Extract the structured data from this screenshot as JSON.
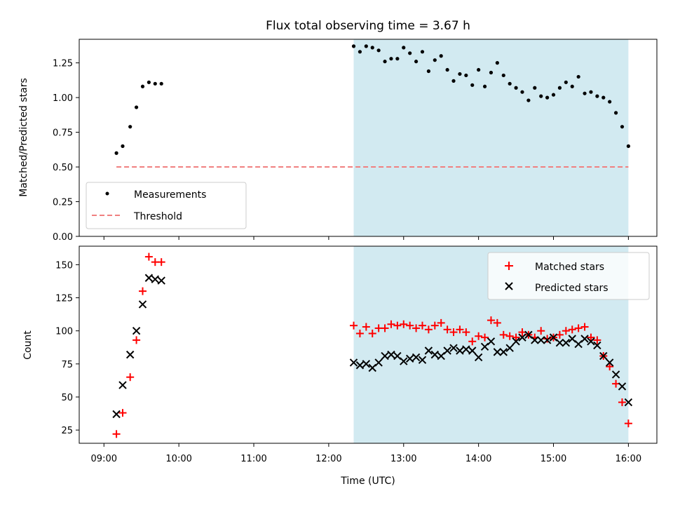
{
  "chart_data": {
    "title": "Flux total observing time = 3.67 h",
    "xlabel": "Time (UTC)",
    "x_type": "time",
    "xlim": [
      "09:00",
      "16:00"
    ],
    "x_ticks": [
      "09:00",
      "10:00",
      "11:00",
      "12:00",
      "13:00",
      "14:00",
      "15:00",
      "16:00"
    ],
    "shaded_region": {
      "start": "12:20",
      "end": "16:00",
      "color": "#add8e6"
    },
    "panels": [
      {
        "type": "scatter",
        "ylabel": "Matched/Predicted stars",
        "ylim": [
          0,
          1.42
        ],
        "y_ticks": [
          "0.00",
          "0.25",
          "0.50",
          "0.75",
          "1.00",
          "1.25"
        ],
        "legend": {
          "position": "lower-left",
          "entries": [
            "Measurements",
            "Threshold"
          ]
        },
        "series": [
          {
            "name": "Measurements",
            "marker": "dot",
            "color": "#000000",
            "points": [
              [
                "09:10",
                0.6
              ],
              [
                "09:15",
                0.65
              ],
              [
                "09:21",
                0.79
              ],
              [
                "09:26",
                0.93
              ],
              [
                "09:31",
                1.08
              ],
              [
                "09:36",
                1.11
              ],
              [
                "09:41",
                1.1
              ],
              [
                "09:46",
                1.1
              ],
              [
                "12:20",
                1.37
              ],
              [
                "12:25",
                1.33
              ],
              [
                "12:30",
                1.37
              ],
              [
                "12:35",
                1.36
              ],
              [
                "12:40",
                1.34
              ],
              [
                "12:45",
                1.26
              ],
              [
                "12:50",
                1.28
              ],
              [
                "12:55",
                1.28
              ],
              [
                "13:00",
                1.36
              ],
              [
                "13:05",
                1.32
              ],
              [
                "13:10",
                1.26
              ],
              [
                "13:15",
                1.33
              ],
              [
                "13:20",
                1.19
              ],
              [
                "13:25",
                1.27
              ],
              [
                "13:30",
                1.3
              ],
              [
                "13:35",
                1.2
              ],
              [
                "13:40",
                1.12
              ],
              [
                "13:45",
                1.17
              ],
              [
                "13:50",
                1.16
              ],
              [
                "13:55",
                1.09
              ],
              [
                "14:00",
                1.2
              ],
              [
                "14:05",
                1.08
              ],
              [
                "14:10",
                1.18
              ],
              [
                "14:15",
                1.25
              ],
              [
                "14:20",
                1.16
              ],
              [
                "14:25",
                1.1
              ],
              [
                "14:30",
                1.07
              ],
              [
                "14:35",
                1.04
              ],
              [
                "14:40",
                0.98
              ],
              [
                "14:45",
                1.07
              ],
              [
                "14:50",
                1.01
              ],
              [
                "14:55",
                1.0
              ],
              [
                "15:00",
                1.02
              ],
              [
                "15:05",
                1.07
              ],
              [
                "15:10",
                1.11
              ],
              [
                "15:15",
                1.08
              ],
              [
                "15:20",
                1.15
              ],
              [
                "15:25",
                1.03
              ],
              [
                "15:30",
                1.04
              ],
              [
                "15:35",
                1.01
              ],
              [
                "15:40",
                1.0
              ],
              [
                "15:45",
                0.97
              ],
              [
                "15:50",
                0.89
              ],
              [
                "15:55",
                0.79
              ],
              [
                "16:00",
                0.65
              ]
            ]
          },
          {
            "name": "Threshold",
            "type": "dashed-line",
            "color": "#f08080",
            "points": [
              [
                "09:10",
                0.5
              ],
              [
                "16:00",
                0.5
              ]
            ]
          }
        ]
      },
      {
        "type": "scatter",
        "ylabel": "Count",
        "ylim": [
          15,
          164
        ],
        "y_ticks": [
          "25",
          "50",
          "75",
          "100",
          "125",
          "150"
        ],
        "legend": {
          "position": "upper-right",
          "entries": [
            "Matched stars",
            "Predicted stars"
          ]
        },
        "series": [
          {
            "name": "Matched stars",
            "marker": "plus",
            "color": "#ff0000",
            "points": [
              [
                "09:10",
                22
              ],
              [
                "09:15",
                38
              ],
              [
                "09:21",
                65
              ],
              [
                "09:26",
                93
              ],
              [
                "09:31",
                130
              ],
              [
                "09:36",
                156
              ],
              [
                "09:41",
                152
              ],
              [
                "09:46",
                152
              ],
              [
                "12:20",
                104
              ],
              [
                "12:25",
                98
              ],
              [
                "12:30",
                103
              ],
              [
                "12:35",
                98
              ],
              [
                "12:40",
                102
              ],
              [
                "12:45",
                102
              ],
              [
                "12:50",
                105
              ],
              [
                "12:55",
                104
              ],
              [
                "13:00",
                105
              ],
              [
                "13:05",
                104
              ],
              [
                "13:10",
                102
              ],
              [
                "13:15",
                104
              ],
              [
                "13:20",
                101
              ],
              [
                "13:25",
                104
              ],
              [
                "13:30",
                106
              ],
              [
                "13:35",
                101
              ],
              [
                "13:40",
                99
              ],
              [
                "13:45",
                101
              ],
              [
                "13:50",
                99
              ],
              [
                "13:55",
                92
              ],
              [
                "14:00",
                96
              ],
              [
                "14:05",
                95
              ],
              [
                "14:10",
                108
              ],
              [
                "14:15",
                106
              ],
              [
                "14:20",
                97
              ],
              [
                "14:25",
                96
              ],
              [
                "14:30",
                95
              ],
              [
                "14:35",
                99
              ],
              [
                "14:40",
                97
              ],
              [
                "14:45",
                95
              ],
              [
                "14:50",
                100
              ],
              [
                "14:55",
                94
              ],
              [
                "15:00",
                95
              ],
              [
                "15:05",
                97
              ],
              [
                "15:10",
                100
              ],
              [
                "15:15",
                101
              ],
              [
                "15:20",
                102
              ],
              [
                "15:25",
                103
              ],
              [
                "15:30",
                95
              ],
              [
                "15:35",
                93
              ],
              [
                "15:40",
                81
              ],
              [
                "15:45",
                73
              ],
              [
                "15:50",
                60
              ],
              [
                "15:55",
                46
              ],
              [
                "16:00",
                30
              ]
            ]
          },
          {
            "name": "Predicted stars",
            "marker": "x",
            "color": "#000000",
            "points": [
              [
                "09:10",
                37
              ],
              [
                "09:15",
                59
              ],
              [
                "09:21",
                82
              ],
              [
                "09:26",
                100
              ],
              [
                "09:31",
                120
              ],
              [
                "09:36",
                140
              ],
              [
                "09:41",
                139
              ],
              [
                "09:46",
                138
              ],
              [
                "12:20",
                76
              ],
              [
                "12:25",
                74
              ],
              [
                "12:30",
                75
              ],
              [
                "12:35",
                72
              ],
              [
                "12:40",
                76
              ],
              [
                "12:45",
                81
              ],
              [
                "12:50",
                82
              ],
              [
                "12:55",
                81
              ],
              [
                "13:00",
                77
              ],
              [
                "13:05",
                79
              ],
              [
                "13:10",
                80
              ],
              [
                "13:15",
                78
              ],
              [
                "13:20",
                85
              ],
              [
                "13:25",
                82
              ],
              [
                "13:30",
                81
              ],
              [
                "13:35",
                85
              ],
              [
                "13:40",
                87
              ],
              [
                "13:45",
                85
              ],
              [
                "13:50",
                86
              ],
              [
                "13:55",
                85
              ],
              [
                "14:00",
                80
              ],
              [
                "14:05",
                88
              ],
              [
                "14:10",
                92
              ],
              [
                "14:15",
                84
              ],
              [
                "14:20",
                84
              ],
              [
                "14:25",
                87
              ],
              [
                "14:30",
                92
              ],
              [
                "14:35",
                95
              ],
              [
                "14:40",
                97
              ],
              [
                "14:45",
                93
              ],
              [
                "14:50",
                93
              ],
              [
                "14:55",
                93
              ],
              [
                "15:00",
                95
              ],
              [
                "15:05",
                91
              ],
              [
                "15:10",
                91
              ],
              [
                "15:15",
                94
              ],
              [
                "15:20",
                90
              ],
              [
                "15:25",
                94
              ],
              [
                "15:30",
                92
              ],
              [
                "15:35",
                89
              ],
              [
                "15:40",
                81
              ],
              [
                "15:45",
                76
              ],
              [
                "15:50",
                67
              ],
              [
                "15:55",
                58
              ],
              [
                "16:00",
                46
              ]
            ]
          }
        ]
      }
    ]
  }
}
